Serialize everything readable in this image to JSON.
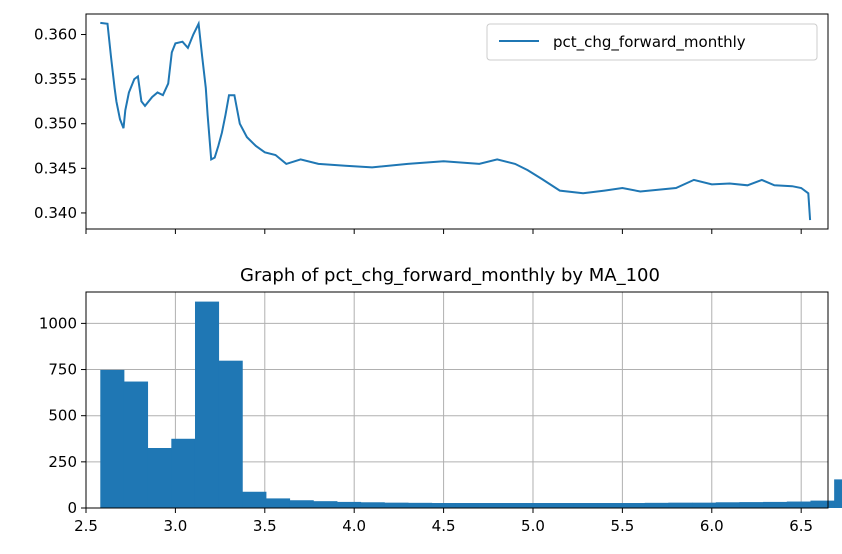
{
  "chart_data": [
    {
      "type": "line",
      "title": "",
      "xlabel": "",
      "ylabel": "",
      "xlim": [
        2.5,
        6.65
      ],
      "ylim": [
        0.3382,
        0.3623
      ],
      "yticks": [
        0.34,
        0.345,
        0.35,
        0.355,
        0.36
      ],
      "ytick_labels": [
        "0.340",
        "0.345",
        "0.350",
        "0.355",
        "0.360"
      ],
      "xticks": [
        2.5,
        3.0,
        3.5,
        4.0,
        4.5,
        5.0,
        5.5,
        6.0,
        6.5
      ],
      "x_tick_labels_visible": false,
      "grid": false,
      "legend": {
        "position": "upper-right",
        "entries": [
          "pct_chg_forward_monthly"
        ]
      },
      "color": "#1f77b4",
      "series": [
        {
          "name": "pct_chg_forward_monthly",
          "points": [
            [
              2.58,
              0.3613
            ],
            [
              2.62,
              0.3612
            ],
            [
              2.64,
              0.3575
            ],
            [
              2.66,
              0.354
            ],
            [
              2.67,
              0.3525
            ],
            [
              2.69,
              0.3505
            ],
            [
              2.71,
              0.3495
            ],
            [
              2.72,
              0.3515
            ],
            [
              2.74,
              0.3535
            ],
            [
              2.77,
              0.355
            ],
            [
              2.79,
              0.3553
            ],
            [
              2.81,
              0.3525
            ],
            [
              2.83,
              0.352
            ],
            [
              2.87,
              0.353
            ],
            [
              2.9,
              0.3535
            ],
            [
              2.93,
              0.3532
            ],
            [
              2.96,
              0.3545
            ],
            [
              2.98,
              0.358
            ],
            [
              3.0,
              0.359
            ],
            [
              3.04,
              0.3592
            ],
            [
              3.07,
              0.3585
            ],
            [
              3.1,
              0.36
            ],
            [
              3.13,
              0.3612
            ],
            [
              3.15,
              0.3575
            ],
            [
              3.17,
              0.354
            ],
            [
              3.18,
              0.351
            ],
            [
              3.2,
              0.346
            ],
            [
              3.22,
              0.3462
            ],
            [
              3.24,
              0.3475
            ],
            [
              3.26,
              0.349
            ],
            [
              3.28,
              0.351
            ],
            [
              3.3,
              0.3532
            ],
            [
              3.33,
              0.3532
            ],
            [
              3.36,
              0.35
            ],
            [
              3.4,
              0.3485
            ],
            [
              3.45,
              0.3475
            ],
            [
              3.5,
              0.3468
            ],
            [
              3.56,
              0.3465
            ],
            [
              3.62,
              0.3455
            ],
            [
              3.7,
              0.346
            ],
            [
              3.8,
              0.3455
            ],
            [
              3.95,
              0.3453
            ],
            [
              4.1,
              0.3451
            ],
            [
              4.3,
              0.3455
            ],
            [
              4.5,
              0.3458
            ],
            [
              4.7,
              0.3455
            ],
            [
              4.8,
              0.346
            ],
            [
              4.9,
              0.3455
            ],
            [
              4.97,
              0.3448
            ],
            [
              5.05,
              0.3438
            ],
            [
              5.15,
              0.3425
            ],
            [
              5.28,
              0.3422
            ],
            [
              5.4,
              0.3425
            ],
            [
              5.5,
              0.3428
            ],
            [
              5.6,
              0.3424
            ],
            [
              5.7,
              0.3426
            ],
            [
              5.8,
              0.3428
            ],
            [
              5.9,
              0.3437
            ],
            [
              6.0,
              0.3432
            ],
            [
              6.1,
              0.3433
            ],
            [
              6.2,
              0.3431
            ],
            [
              6.28,
              0.3437
            ],
            [
              6.35,
              0.3431
            ],
            [
              6.45,
              0.343
            ],
            [
              6.5,
              0.3428
            ],
            [
              6.54,
              0.3422
            ],
            [
              6.55,
              0.3392
            ]
          ]
        }
      ]
    },
    {
      "type": "bar",
      "title": "Graph of pct_chg_forward_monthly by MA_100",
      "xlabel": "",
      "ylabel": "",
      "xlim": [
        2.5,
        6.65
      ],
      "ylim": [
        0,
        1170
      ],
      "xticks": [
        2.5,
        3.0,
        3.5,
        4.0,
        4.5,
        5.0,
        5.5,
        6.0,
        6.5
      ],
      "xtick_labels": [
        "2.5",
        "3.0",
        "3.5",
        "4.0",
        "4.5",
        "5.0",
        "5.5",
        "6.0",
        "6.5"
      ],
      "yticks": [
        0,
        250,
        500,
        750,
        1000
      ],
      "ytick_labels": [
        "0",
        "250",
        "500",
        "750",
        "1000"
      ],
      "grid": true,
      "color": "#1f77b4",
      "bin_start": 2.58,
      "bin_width": 0.1324,
      "values": [
        748,
        685,
        325,
        375,
        1118,
        798,
        88,
        52,
        42,
        37,
        33,
        31,
        29,
        28,
        27,
        27,
        27,
        27,
        27,
        27,
        27,
        27,
        27,
        28,
        29,
        29,
        31,
        32,
        33,
        35,
        40,
        155
      ]
    }
  ]
}
